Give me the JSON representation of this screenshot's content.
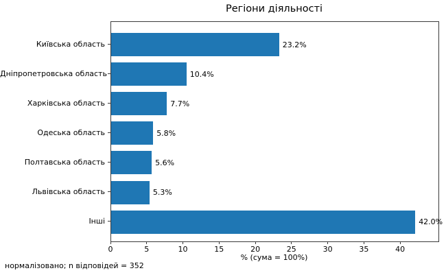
{
  "chart_data": {
    "type": "bar",
    "orientation": "horizontal",
    "title": "Регіони діяльності",
    "xlabel": "% (сума = 100%)",
    "categories": [
      "Київська область",
      "Дніпропетровська область",
      "Харківська область",
      "Одеська область",
      "Полтавська область",
      "Львівська область",
      "Інші"
    ],
    "values": [
      23.2,
      10.4,
      7.7,
      5.8,
      5.6,
      5.3,
      42.0
    ],
    "value_labels": [
      "23.2%",
      "10.4%",
      "7.7%",
      "5.8%",
      "5.6%",
      "5.3%",
      "42.0%"
    ],
    "xticks": [
      0,
      5,
      10,
      15,
      20,
      25,
      30,
      35,
      40
    ],
    "xlim": [
      0,
      45.2
    ],
    "bar_color": "#1f77b4",
    "axis_color": "#3a3a3a",
    "grid": false,
    "legend_position": "none",
    "footnote": "нормалізовано; n відповідей = 352"
  }
}
